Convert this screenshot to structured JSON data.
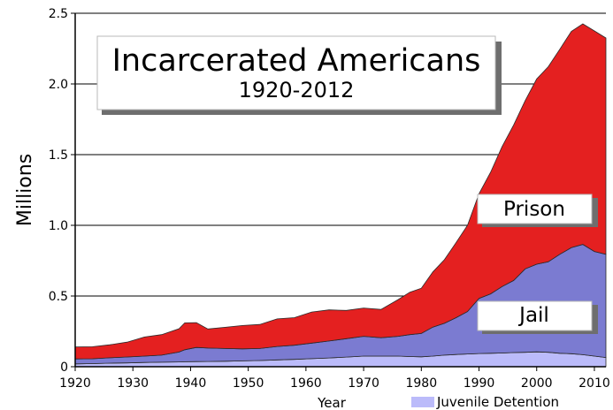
{
  "chart_data": {
    "type": "area",
    "stacked": true,
    "title": "Incarcerated Americans",
    "subtitle": "1920-2012",
    "xlabel": "Year",
    "ylabel": "Millions",
    "xlim": [
      1920,
      2012
    ],
    "ylim": [
      0,
      2.5
    ],
    "xticks": [
      "1920",
      "1930",
      "1940",
      "1950",
      "1960",
      "1970",
      "1980",
      "1990",
      "2000",
      "2010"
    ],
    "yticks": [
      "0",
      "0.5",
      "1.0",
      "1.5",
      "2.0",
      "2.5"
    ],
    "grid": "horizontal",
    "x": [
      1920,
      1923,
      1926,
      1929,
      1932,
      1935,
      1938,
      1939,
      1941,
      1943,
      1946,
      1949,
      1952,
      1955,
      1958,
      1961,
      1964,
      1967,
      1970,
      1973,
      1976,
      1978,
      1980,
      1982,
      1984,
      1986,
      1988,
      1990,
      1992,
      1994,
      1996,
      1998,
      2000,
      2002,
      2004,
      2006,
      2008,
      2010,
      2012
    ],
    "series": [
      {
        "name": "Juvenile Detention",
        "color": "#bbbbfa",
        "values": [
          0.02,
          0.022,
          0.025,
          0.027,
          0.03,
          0.032,
          0.034,
          0.035,
          0.036,
          0.037,
          0.039,
          0.041,
          0.044,
          0.048,
          0.052,
          0.057,
          0.062,
          0.068,
          0.075,
          0.075,
          0.075,
          0.072,
          0.07,
          0.075,
          0.082,
          0.086,
          0.09,
          0.093,
          0.095,
          0.097,
          0.1,
          0.102,
          0.105,
          0.102,
          0.095,
          0.092,
          0.085,
          0.075,
          0.065
        ]
      },
      {
        "name": "Jail",
        "color": "#7b7bd1",
        "values": [
          0.035,
          0.034,
          0.038,
          0.042,
          0.045,
          0.05,
          0.07,
          0.085,
          0.1,
          0.095,
          0.09,
          0.085,
          0.085,
          0.095,
          0.1,
          0.11,
          0.12,
          0.13,
          0.14,
          0.13,
          0.14,
          0.155,
          0.165,
          0.205,
          0.225,
          0.26,
          0.3,
          0.39,
          0.42,
          0.47,
          0.51,
          0.59,
          0.62,
          0.64,
          0.7,
          0.75,
          0.78,
          0.74,
          0.73
        ]
      },
      {
        "name": "Prison",
        "color": "#e42020",
        "values": [
          0.085,
          0.085,
          0.092,
          0.105,
          0.135,
          0.145,
          0.165,
          0.19,
          0.175,
          0.135,
          0.15,
          0.165,
          0.17,
          0.195,
          0.195,
          0.22,
          0.22,
          0.2,
          0.2,
          0.2,
          0.26,
          0.3,
          0.32,
          0.39,
          0.45,
          0.53,
          0.61,
          0.74,
          0.86,
          0.99,
          1.1,
          1.19,
          1.31,
          1.38,
          1.45,
          1.53,
          1.56,
          1.56,
          1.53
        ]
      }
    ],
    "annotations": [
      "Prison",
      "Jail"
    ],
    "legend": [
      "Juvenile Detention"
    ],
    "legend_position": "bottom"
  }
}
